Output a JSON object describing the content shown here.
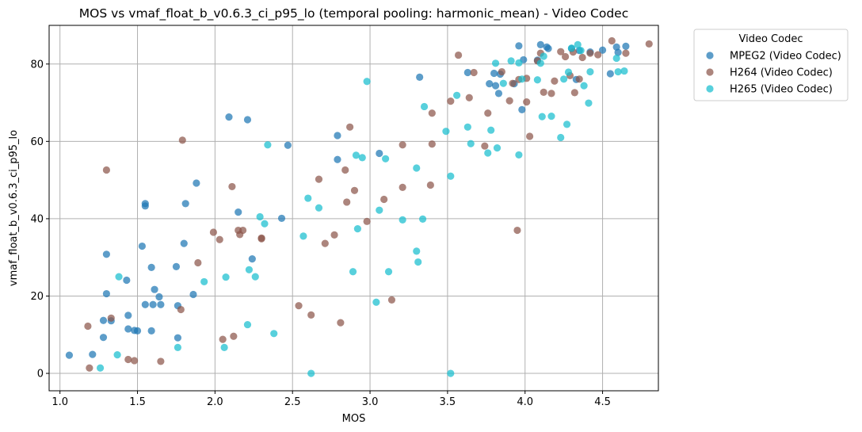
{
  "chart_data": {
    "type": "scatter",
    "title": "MOS vs vmaf_float_b_v0.6.3_ci_p95_lo (temporal pooling: harmonic_mean) - Video Codec",
    "xlabel": "MOS",
    "ylabel": "vmaf_float_b_v0.6.3_ci_p95_lo",
    "xlim": [
      0.93,
      4.86
    ],
    "ylim": [
      -4.5,
      90
    ],
    "xticks": [
      "1.0",
      "1.5",
      "2.0",
      "2.5",
      "3.0",
      "3.5",
      "4.0",
      "4.5"
    ],
    "yticks": [
      "0",
      "20",
      "40",
      "60",
      "80"
    ],
    "grid": true,
    "legend_title": "Video Codec",
    "legend_position": "outside-top-right",
    "series": [
      {
        "name": "MPEG2 (Video Codec)",
        "color": "#1f77b4",
        "points": [
          [
            1.06,
            4.7
          ],
          [
            1.21,
            4.9
          ],
          [
            1.28,
            13.7
          ],
          [
            1.28,
            9.3
          ],
          [
            1.3,
            30.8
          ],
          [
            1.3,
            20.6
          ],
          [
            1.33,
            13.6
          ],
          [
            1.43,
            24.1
          ],
          [
            1.44,
            15.0
          ],
          [
            1.44,
            11.5
          ],
          [
            1.48,
            11.1
          ],
          [
            1.5,
            11.0
          ],
          [
            1.53,
            32.9
          ],
          [
            1.55,
            43.3
          ],
          [
            1.55,
            43.9
          ],
          [
            1.55,
            17.8
          ],
          [
            1.59,
            27.4
          ],
          [
            1.6,
            17.8
          ],
          [
            1.59,
            11.0
          ],
          [
            1.61,
            21.7
          ],
          [
            1.64,
            19.8
          ],
          [
            1.65,
            17.8
          ],
          [
            1.75,
            27.6
          ],
          [
            1.76,
            17.5
          ],
          [
            1.76,
            9.2
          ],
          [
            1.8,
            33.6
          ],
          [
            1.81,
            43.9
          ],
          [
            1.86,
            20.4
          ],
          [
            1.88,
            49.2
          ],
          [
            2.09,
            66.3
          ],
          [
            2.15,
            41.7
          ],
          [
            2.21,
            65.6
          ],
          [
            2.24,
            29.6
          ],
          [
            2.43,
            40.1
          ],
          [
            2.47,
            59.0
          ],
          [
            2.79,
            61.5
          ],
          [
            2.79,
            55.3
          ],
          [
            3.06,
            56.9
          ],
          [
            3.32,
            76.6
          ],
          [
            3.63,
            77.8
          ],
          [
            3.77,
            74.9
          ],
          [
            3.8,
            77.6
          ],
          [
            3.81,
            74.4
          ],
          [
            3.83,
            72.4
          ],
          [
            3.84,
            77.4
          ],
          [
            3.93,
            74.9
          ],
          [
            3.96,
            84.7
          ],
          [
            3.98,
            68.2
          ],
          [
            3.99,
            81.1
          ],
          [
            4.08,
            81.0
          ],
          [
            4.1,
            85.0
          ],
          [
            4.14,
            84.4
          ],
          [
            4.15,
            84.0
          ],
          [
            4.3,
            84.0
          ],
          [
            4.33,
            76.0
          ],
          [
            4.35,
            83.5
          ],
          [
            4.42,
            83.1
          ],
          [
            4.5,
            83.6
          ],
          [
            4.55,
            77.5
          ],
          [
            4.59,
            84.4
          ],
          [
            4.6,
            83.0
          ],
          [
            4.65,
            84.6
          ]
        ]
      },
      {
        "name": "H264 (Video Codec)",
        "color": "#8c564b",
        "points": [
          [
            1.18,
            12.2
          ],
          [
            1.19,
            1.4
          ],
          [
            1.3,
            52.6
          ],
          [
            1.33,
            14.3
          ],
          [
            1.44,
            3.6
          ],
          [
            1.48,
            3.3
          ],
          [
            1.65,
            3.1
          ],
          [
            1.78,
            16.5
          ],
          [
            1.79,
            60.3
          ],
          [
            1.89,
            28.6
          ],
          [
            1.99,
            36.5
          ],
          [
            2.03,
            34.6
          ],
          [
            2.05,
            8.8
          ],
          [
            2.11,
            48.3
          ],
          [
            2.12,
            9.6
          ],
          [
            2.15,
            37.0
          ],
          [
            2.16,
            35.9
          ],
          [
            2.18,
            37.0
          ],
          [
            2.3,
            35.0
          ],
          [
            2.3,
            34.8
          ],
          [
            2.54,
            17.5
          ],
          [
            2.62,
            15.1
          ],
          [
            2.67,
            50.2
          ],
          [
            2.71,
            33.6
          ],
          [
            2.77,
            35.8
          ],
          [
            2.81,
            13.1
          ],
          [
            2.84,
            52.6
          ],
          [
            2.85,
            44.3
          ],
          [
            2.87,
            63.7
          ],
          [
            2.9,
            47.3
          ],
          [
            2.98,
            39.3
          ],
          [
            3.09,
            45.0
          ],
          [
            3.14,
            19.0
          ],
          [
            3.21,
            48.1
          ],
          [
            3.21,
            59.1
          ],
          [
            3.39,
            48.7
          ],
          [
            3.4,
            59.3
          ],
          [
            3.4,
            67.3
          ],
          [
            3.52,
            70.4
          ],
          [
            3.57,
            82.3
          ],
          [
            3.64,
            71.3
          ],
          [
            3.67,
            77.8
          ],
          [
            3.74,
            58.8
          ],
          [
            3.76,
            67.3
          ],
          [
            3.85,
            78.0
          ],
          [
            3.9,
            70.5
          ],
          [
            3.92,
            75.0
          ],
          [
            3.95,
            37.0
          ],
          [
            3.96,
            76.0
          ],
          [
            4.01,
            76.3
          ],
          [
            4.01,
            70.2
          ],
          [
            4.03,
            61.3
          ],
          [
            4.08,
            80.8
          ],
          [
            4.1,
            82.8
          ],
          [
            4.12,
            72.7
          ],
          [
            4.17,
            72.4
          ],
          [
            4.19,
            75.6
          ],
          [
            4.23,
            83.2
          ],
          [
            4.26,
            81.9
          ],
          [
            4.29,
            77.0
          ],
          [
            4.31,
            83.1
          ],
          [
            4.32,
            72.6
          ],
          [
            4.35,
            76.1
          ],
          [
            4.37,
            81.7
          ],
          [
            4.42,
            82.8
          ],
          [
            4.47,
            82.4
          ],
          [
            4.56,
            86.0
          ],
          [
            4.65,
            82.8
          ],
          [
            4.8,
            85.2
          ]
        ]
      },
      {
        "name": "H265 (Video Codec)",
        "color": "#17becf",
        "points": [
          [
            1.26,
            1.4
          ],
          [
            1.37,
            4.8
          ],
          [
            1.38,
            25.0
          ],
          [
            1.76,
            6.7
          ],
          [
            1.93,
            23.7
          ],
          [
            2.06,
            6.7
          ],
          [
            2.07,
            24.9
          ],
          [
            2.21,
            12.6
          ],
          [
            2.22,
            26.8
          ],
          [
            2.26,
            25.0
          ],
          [
            2.29,
            40.5
          ],
          [
            2.32,
            38.7
          ],
          [
            2.34,
            59.1
          ],
          [
            2.38,
            10.3
          ],
          [
            2.57,
            35.5
          ],
          [
            2.6,
            45.3
          ],
          [
            2.62,
            0.0
          ],
          [
            2.67,
            42.8
          ],
          [
            2.89,
            26.3
          ],
          [
            2.91,
            56.4
          ],
          [
            2.92,
            37.4
          ],
          [
            2.95,
            55.8
          ],
          [
            2.98,
            75.5
          ],
          [
            3.04,
            18.4
          ],
          [
            3.06,
            42.2
          ],
          [
            3.1,
            55.5
          ],
          [
            3.12,
            26.3
          ],
          [
            3.21,
            39.7
          ],
          [
            3.3,
            53.1
          ],
          [
            3.3,
            31.6
          ],
          [
            3.31,
            28.8
          ],
          [
            3.34,
            39.9
          ],
          [
            3.35,
            69.0
          ],
          [
            3.49,
            62.6
          ],
          [
            3.52,
            0.0
          ],
          [
            3.52,
            51.0
          ],
          [
            3.56,
            71.9
          ],
          [
            3.63,
            63.7
          ],
          [
            3.65,
            59.4
          ],
          [
            3.76,
            57.0
          ],
          [
            3.78,
            62.9
          ],
          [
            3.81,
            80.2
          ],
          [
            3.82,
            58.3
          ],
          [
            3.86,
            75.0
          ],
          [
            3.91,
            80.8
          ],
          [
            3.96,
            80.3
          ],
          [
            3.96,
            56.5
          ],
          [
            3.98,
            76.1
          ],
          [
            4.08,
            75.9
          ],
          [
            4.1,
            80.2
          ],
          [
            4.11,
            66.4
          ],
          [
            4.12,
            82.0
          ],
          [
            4.17,
            66.5
          ],
          [
            4.23,
            61.0
          ],
          [
            4.25,
            76.1
          ],
          [
            4.27,
            64.4
          ],
          [
            4.28,
            77.9
          ],
          [
            4.3,
            84.1
          ],
          [
            4.34,
            85.0
          ],
          [
            4.36,
            83.5
          ],
          [
            4.38,
            74.4
          ],
          [
            4.41,
            69.9
          ],
          [
            4.42,
            78.0
          ],
          [
            4.59,
            81.5
          ],
          [
            4.6,
            78.0
          ],
          [
            4.64,
            78.2
          ]
        ]
      }
    ]
  }
}
